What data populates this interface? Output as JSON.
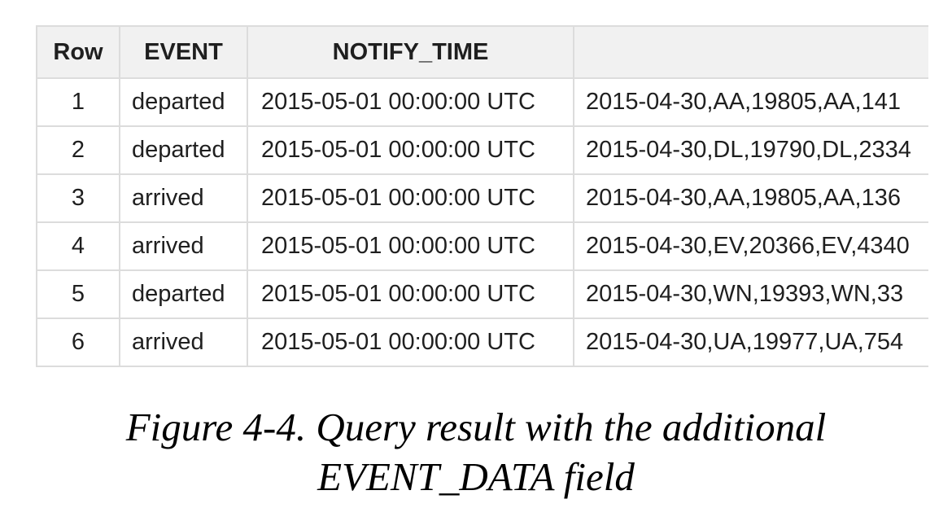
{
  "table": {
    "headers": [
      "Row",
      "EVENT",
      "NOTIFY_TIME",
      ""
    ],
    "rows": [
      [
        "1",
        "departed",
        "2015-05-01 00:00:00 UTC",
        "2015-04-30,AA,19805,AA,141"
      ],
      [
        "2",
        "departed",
        "2015-05-01 00:00:00 UTC",
        "2015-04-30,DL,19790,DL,2334"
      ],
      [
        "3",
        "arrived",
        "2015-05-01 00:00:00 UTC",
        "2015-04-30,AA,19805,AA,136"
      ],
      [
        "4",
        "arrived",
        "2015-05-01 00:00:00 UTC",
        "2015-04-30,EV,20366,EV,4340"
      ],
      [
        "5",
        "departed",
        "2015-05-01 00:00:00 UTC",
        "2015-04-30,WN,19393,WN,33"
      ],
      [
        "6",
        "arrived",
        "2015-05-01 00:00:00 UTC",
        "2015-04-30,UA,19977,UA,754"
      ]
    ]
  },
  "caption": {
    "line1": "Figure 4-4. Query result with the additional",
    "line2": "EVENT_DATA field"
  }
}
